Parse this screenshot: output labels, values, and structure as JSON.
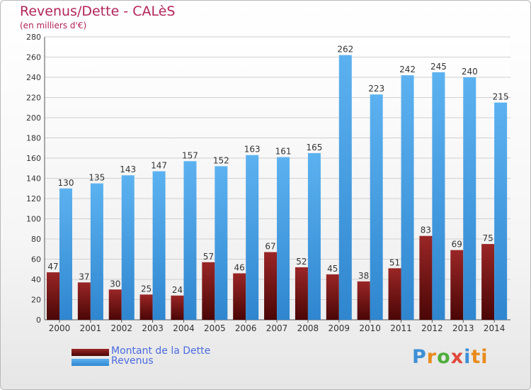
{
  "header": {
    "title": "Revenus/Dette - CALèS",
    "subtitle": "(en milliers d'€)"
  },
  "legend": {
    "items": [
      {
        "label": "Montant de la Dette",
        "color": "#7a1717"
      },
      {
        "label": "Revenus",
        "color": "#4aa3e8"
      }
    ]
  },
  "brand": {
    "text": "Proxiti"
  },
  "chart_data": {
    "type": "bar",
    "categories": [
      "2000",
      "2001",
      "2002",
      "2003",
      "2004",
      "2005",
      "2006",
      "2007",
      "2008",
      "2009",
      "2010",
      "2011",
      "2012",
      "2013",
      "2014"
    ],
    "series": [
      {
        "name": "Montant de la Dette",
        "color": "#7a1717",
        "values": [
          47,
          37,
          30,
          25,
          24,
          57,
          46,
          67,
          52,
          45,
          38,
          51,
          83,
          69,
          75
        ]
      },
      {
        "name": "Revenus",
        "color": "#4aa3e8",
        "values": [
          130,
          135,
          143,
          147,
          157,
          152,
          163,
          161,
          165,
          262,
          223,
          242,
          245,
          240,
          215
        ]
      }
    ],
    "ylim": [
      0,
      280
    ],
    "yticks": [
      0,
      20,
      40,
      60,
      80,
      100,
      120,
      140,
      160,
      180,
      200,
      220,
      240,
      260,
      280
    ],
    "grid": true,
    "legend_position": "bottom-left"
  }
}
